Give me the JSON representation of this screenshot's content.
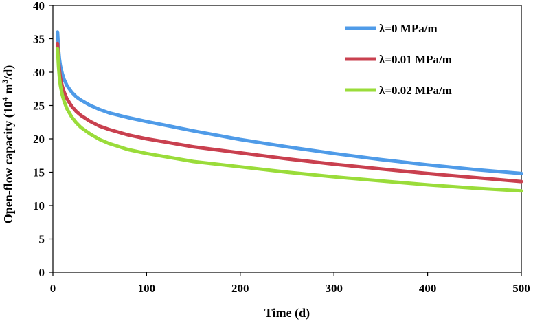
{
  "chart_data": {
    "type": "line",
    "title": "",
    "xlabel": "Time (d)",
    "ylabel_main": "Open-flow capacity (10",
    "ylabel_sup": "4",
    "ylabel_mid": " m",
    "ylabel_sup2": "3",
    "ylabel_end": "/d)",
    "xlim": [
      0,
      500
    ],
    "ylim": [
      0,
      40
    ],
    "xticks": [
      0,
      100,
      200,
      300,
      400,
      500
    ],
    "yticks": [
      0,
      5,
      10,
      15,
      20,
      25,
      30,
      35,
      40
    ],
    "grid": false,
    "legend_position": "top-right",
    "series": [
      {
        "name": "λ=0 MPa/m",
        "color": "#4F9BE8",
        "x": [
          5,
          6,
          7,
          8,
          10,
          12,
          15,
          20,
          25,
          30,
          40,
          50,
          60,
          80,
          100,
          150,
          200,
          250,
          300,
          350,
          400,
          450,
          500
        ],
        "y": [
          36.0,
          33.5,
          32.0,
          31.0,
          29.8,
          28.9,
          28.0,
          27.0,
          26.3,
          25.8,
          25.0,
          24.4,
          23.9,
          23.2,
          22.6,
          21.2,
          19.9,
          18.8,
          17.8,
          16.9,
          16.1,
          15.4,
          14.8
        ]
      },
      {
        "name": "λ=0.01 MPa/m",
        "color": "#C9404F",
        "x": [
          5,
          6,
          7,
          8,
          10,
          12,
          15,
          20,
          25,
          30,
          40,
          50,
          60,
          80,
          100,
          150,
          200,
          250,
          300,
          350,
          400,
          450,
          500
        ],
        "y": [
          34.3,
          31.8,
          30.3,
          29.2,
          27.9,
          27.0,
          26.0,
          24.9,
          24.1,
          23.5,
          22.6,
          21.9,
          21.4,
          20.6,
          20.0,
          18.8,
          17.9,
          17.0,
          16.2,
          15.5,
          14.8,
          14.2,
          13.6
        ]
      },
      {
        "name": "λ=0.02 MPa/m",
        "color": "#9ADC3A",
        "x": [
          5,
          6,
          7,
          8,
          10,
          12,
          15,
          20,
          25,
          30,
          40,
          50,
          60,
          80,
          100,
          150,
          200,
          250,
          300,
          350,
          400,
          450,
          500
        ],
        "y": [
          33.5,
          30.8,
          29.2,
          28.0,
          26.6,
          25.6,
          24.5,
          23.3,
          22.4,
          21.7,
          20.7,
          19.9,
          19.3,
          18.4,
          17.8,
          16.6,
          15.8,
          15.0,
          14.3,
          13.7,
          13.1,
          12.6,
          12.2
        ]
      }
    ]
  }
}
